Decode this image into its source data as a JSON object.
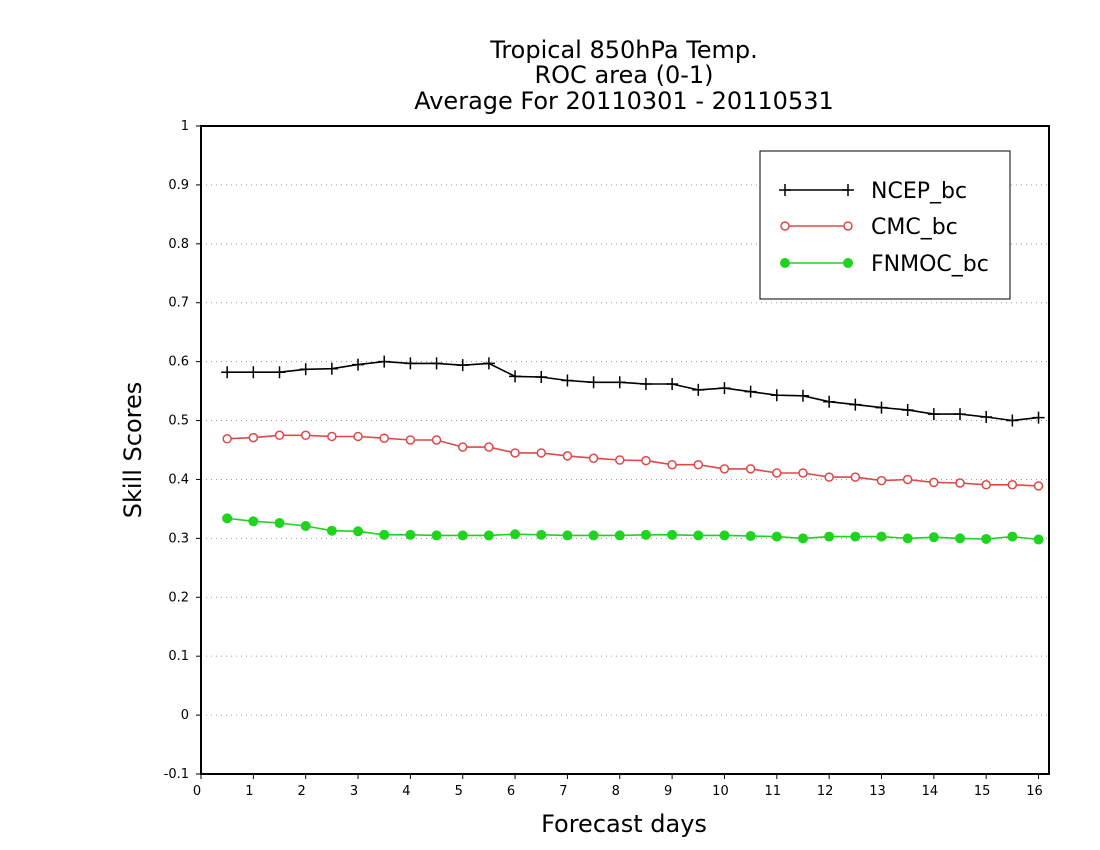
{
  "chart_data": {
    "type": "line",
    "title": [
      "Tropical 850hPa Temp.",
      "ROC area (0-1)",
      "Average For 20110301 - 20110531"
    ],
    "xlabel": "Forecast days",
    "ylabel": "Skill Scores",
    "xlim": [
      0,
      16.2
    ],
    "ylim": [
      -0.1,
      1
    ],
    "xticks": [
      "0",
      "1",
      "2",
      "3",
      "4",
      "5",
      "6",
      "7",
      "8",
      "9",
      "10",
      "11",
      "12",
      "13",
      "14",
      "15",
      "16"
    ],
    "yticks": [
      "-0.1",
      "0",
      "0.1",
      "0.2",
      "0.3",
      "0.4",
      "0.5",
      "0.6",
      "0.7",
      "0.8",
      "0.9",
      "1"
    ],
    "grid": "horizontal dotted",
    "legend_position": "top-right",
    "x": [
      0.5,
      1,
      1.5,
      2,
      2.5,
      3,
      3.5,
      4,
      4.5,
      5,
      5.5,
      6,
      6.5,
      7,
      7.5,
      8,
      8.5,
      9,
      9.5,
      10,
      10.5,
      11,
      11.5,
      12,
      12.5,
      13,
      13.5,
      14,
      14.5,
      15,
      15.5,
      16
    ],
    "series": [
      {
        "name": "NCEP_bc",
        "color": "#000000",
        "marker": "plus",
        "values": [
          0.582,
          0.582,
          0.582,
          0.587,
          0.588,
          0.595,
          0.6,
          0.597,
          0.597,
          0.594,
          0.597,
          0.575,
          0.574,
          0.568,
          0.565,
          0.565,
          0.562,
          0.562,
          0.552,
          0.555,
          0.549,
          0.543,
          0.542,
          0.532,
          0.527,
          0.522,
          0.518,
          0.511,
          0.511,
          0.506,
          0.5,
          0.505
        ]
      },
      {
        "name": "CMC_bc",
        "color": "#e04848",
        "marker": "open-circle",
        "values": [
          0.469,
          0.471,
          0.475,
          0.475,
          0.473,
          0.473,
          0.47,
          0.467,
          0.467,
          0.455,
          0.455,
          0.445,
          0.445,
          0.44,
          0.436,
          0.433,
          0.432,
          0.425,
          0.425,
          0.418,
          0.418,
          0.411,
          0.411,
          0.404,
          0.404,
          0.398,
          0.4,
          0.395,
          0.394,
          0.391,
          0.391,
          0.389
        ]
      },
      {
        "name": "FNMOC_bc",
        "color": "#1ed41e",
        "marker": "filled-circle",
        "values": [
          0.334,
          0.329,
          0.326,
          0.321,
          0.313,
          0.312,
          0.306,
          0.306,
          0.305,
          0.305,
          0.305,
          0.307,
          0.306,
          0.305,
          0.305,
          0.305,
          0.306,
          0.306,
          0.305,
          0.305,
          0.304,
          0.303,
          0.3,
          0.303,
          0.303,
          0.303,
          0.3,
          0.302,
          0.3,
          0.299,
          0.303,
          0.298
        ]
      }
    ]
  }
}
